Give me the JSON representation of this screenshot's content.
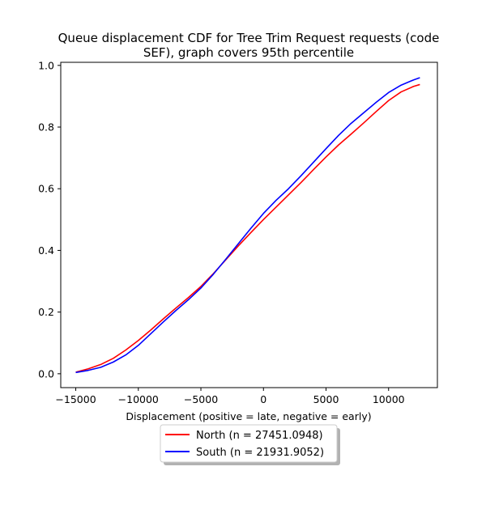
{
  "chart_data": {
    "type": "line",
    "title_line1": "Queue displacement CDF for Tree Trim Request  requests (code",
    "title_line2": "SEF), graph covers 95th percentile",
    "xlabel": "Displacement (positive = late, negative = early)",
    "ylabel": "",
    "xlim": [
      -16200,
      13900
    ],
    "ylim": [
      -0.045,
      1.01
    ],
    "x_ticks": [
      -15000,
      -10000,
      -5000,
      0,
      5000,
      10000
    ],
    "y_ticks": [
      0.0,
      0.2,
      0.4,
      0.6,
      0.8,
      1.0
    ],
    "grid": false,
    "legend_placement": "below-center",
    "series": [
      {
        "name": "North (n = 27451.0948)",
        "color": "#ff0000",
        "x": [
          -15000,
          -14000,
          -13000,
          -12000,
          -11000,
          -10000,
          -9000,
          -8000,
          -7000,
          -6000,
          -5000,
          -4000,
          -3000,
          -2000,
          -1000,
          0,
          1000,
          2000,
          3000,
          4000,
          5000,
          6000,
          7000,
          8000,
          9000,
          10000,
          11000,
          12000,
          12500
        ],
        "y": [
          0.005,
          0.016,
          0.03,
          0.05,
          0.077,
          0.108,
          0.142,
          0.178,
          0.213,
          0.247,
          0.283,
          0.325,
          0.37,
          0.415,
          0.458,
          0.5,
          0.54,
          0.58,
          0.62,
          0.662,
          0.703,
          0.742,
          0.777,
          0.813,
          0.85,
          0.886,
          0.914,
          0.932,
          0.938
        ]
      },
      {
        "name": "South (n = 21931.9052)",
        "color": "#0000ff",
        "x": [
          -15000,
          -14000,
          -13000,
          -12000,
          -11000,
          -10000,
          -9000,
          -8000,
          -7000,
          -6000,
          -5000,
          -4000,
          -3000,
          -2000,
          -1000,
          0,
          1000,
          2000,
          3000,
          4000,
          5000,
          6000,
          7000,
          8000,
          9000,
          10000,
          11000,
          12000,
          12500
        ],
        "y": [
          0.004,
          0.011,
          0.021,
          0.038,
          0.061,
          0.092,
          0.13,
          0.168,
          0.205,
          0.24,
          0.278,
          0.323,
          0.372,
          0.422,
          0.472,
          0.52,
          0.562,
          0.6,
          0.642,
          0.686,
          0.73,
          0.773,
          0.812,
          0.846,
          0.88,
          0.912,
          0.936,
          0.953,
          0.96
        ]
      }
    ]
  }
}
